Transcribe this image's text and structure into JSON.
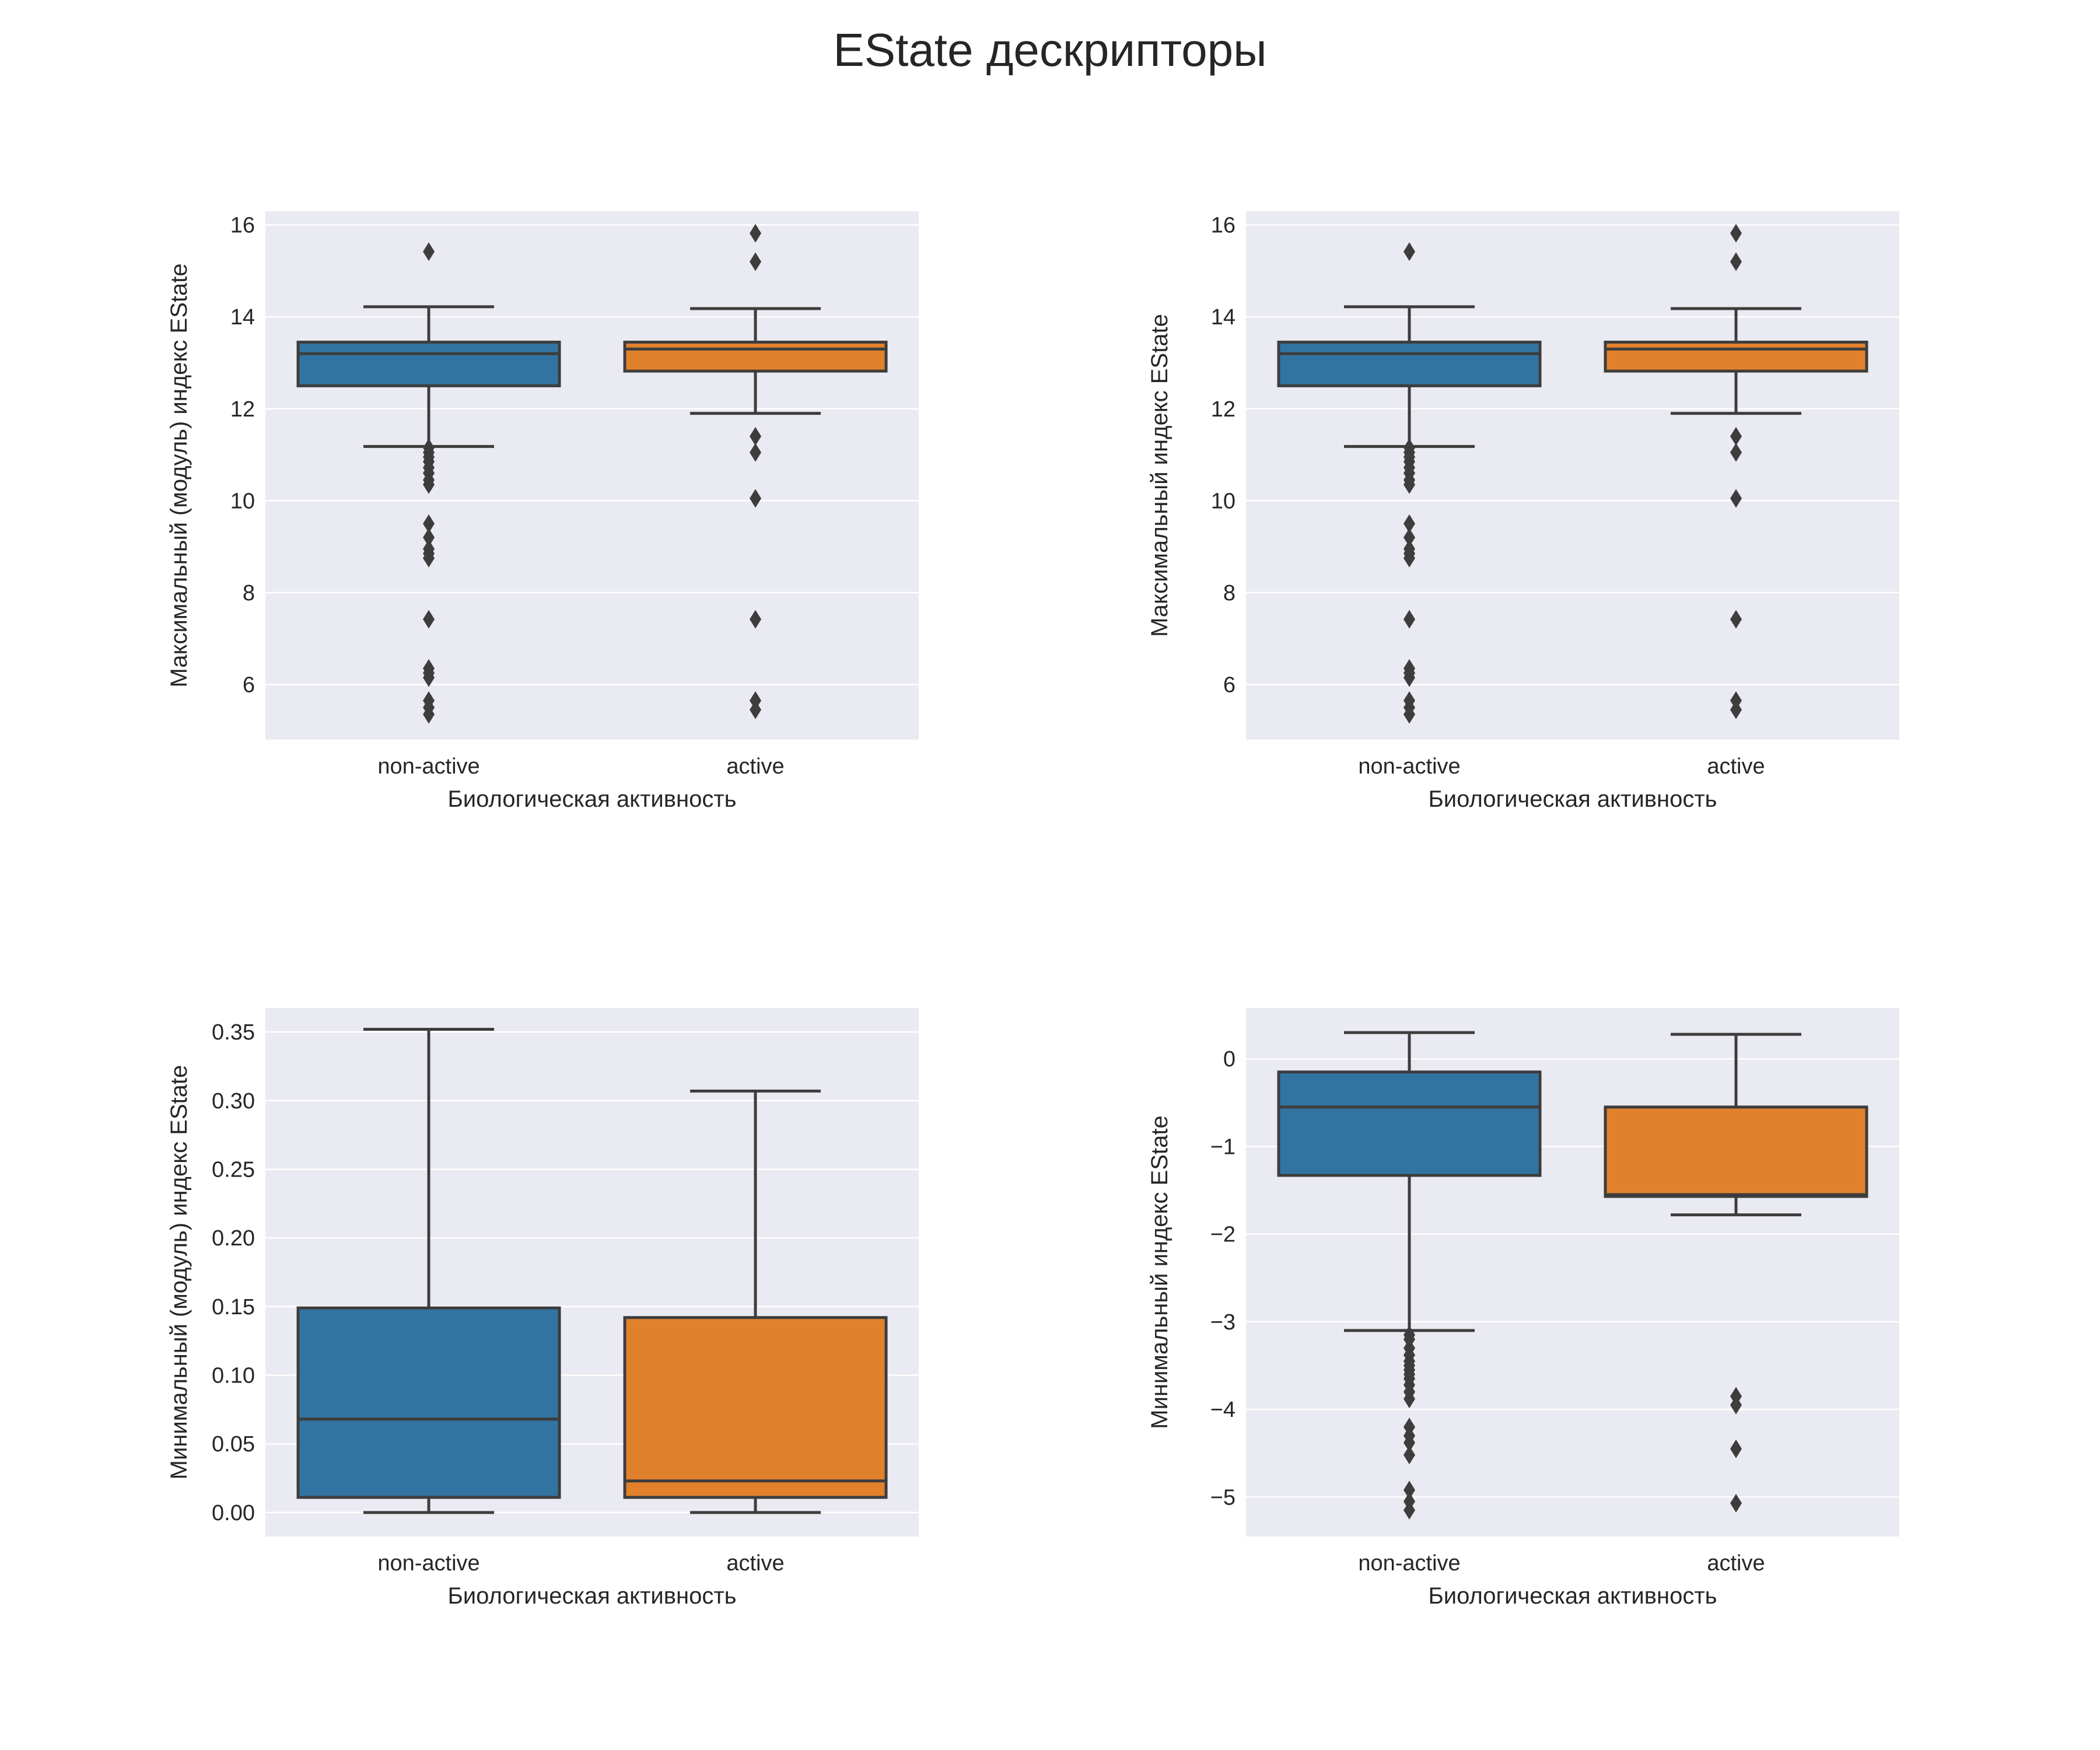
{
  "figure": {
    "title": "EState дескрипторы"
  },
  "chart_data": [
    {
      "type": "box",
      "xlabel": "Биологическая активность",
      "ylabel": "Максимальный (модуль) индекс EState",
      "ylim": [
        4.8,
        16.3
      ],
      "yticks": [
        6,
        8,
        10,
        12,
        14,
        16
      ],
      "ytick_labels": [
        "6",
        "8",
        "10",
        "12",
        "14",
        "16"
      ],
      "grid": true,
      "categories": [
        "non-active",
        "active"
      ],
      "colors": [
        "#3274a1",
        "#e1812c"
      ],
      "boxes": [
        {
          "category": "non-active",
          "q1": 12.5,
          "median": 13.2,
          "q3": 13.45,
          "whisker_low": 11.18,
          "whisker_high": 14.22,
          "outliers": [
            15.42,
            11.15,
            11.05,
            10.95,
            10.85,
            10.72,
            10.6,
            10.45,
            10.35,
            9.5,
            9.2,
            8.95,
            8.85,
            8.75,
            7.42,
            6.35,
            6.25,
            6.15,
            5.65,
            5.5,
            5.35
          ]
        },
        {
          "category": "active",
          "q1": 12.82,
          "median": 13.3,
          "q3": 13.45,
          "whisker_low": 11.9,
          "whisker_high": 14.18,
          "outliers": [
            15.82,
            15.2,
            11.4,
            11.05,
            10.05,
            7.42,
            5.65,
            5.45
          ]
        }
      ]
    },
    {
      "type": "box",
      "xlabel": "Биологическая активность",
      "ylabel": "Максимальный индекс EState",
      "ylim": [
        4.8,
        16.3
      ],
      "yticks": [
        6,
        8,
        10,
        12,
        14,
        16
      ],
      "ytick_labels": [
        "6",
        "8",
        "10",
        "12",
        "14",
        "16"
      ],
      "grid": true,
      "categories": [
        "non-active",
        "active"
      ],
      "colors": [
        "#3274a1",
        "#e1812c"
      ],
      "boxes": [
        {
          "category": "non-active",
          "q1": 12.5,
          "median": 13.2,
          "q3": 13.45,
          "whisker_low": 11.18,
          "whisker_high": 14.22,
          "outliers": [
            15.42,
            11.15,
            11.05,
            10.95,
            10.85,
            10.72,
            10.6,
            10.45,
            10.35,
            9.5,
            9.2,
            8.95,
            8.85,
            8.75,
            7.42,
            6.35,
            6.25,
            6.15,
            5.65,
            5.5,
            5.35
          ]
        },
        {
          "category": "active",
          "q1": 12.82,
          "median": 13.3,
          "q3": 13.45,
          "whisker_low": 11.9,
          "whisker_high": 14.18,
          "outliers": [
            15.82,
            15.2,
            11.4,
            11.05,
            10.05,
            7.42,
            5.65,
            5.45
          ]
        }
      ]
    },
    {
      "type": "box",
      "xlabel": "Биологическая активность",
      "ylabel": "Минимальный (модуль) индекс EState",
      "ylim": [
        -0.0175,
        0.3675
      ],
      "yticks": [
        0,
        0.05,
        0.1,
        0.15,
        0.2,
        0.25,
        0.3,
        0.35
      ],
      "ytick_labels": [
        "0.00",
        "0.05",
        "0.10",
        "0.15",
        "0.20",
        "0.25",
        "0.30",
        "0.35"
      ],
      "grid": true,
      "categories": [
        "non-active",
        "active"
      ],
      "colors": [
        "#3274a1",
        "#e1812c"
      ],
      "boxes": [
        {
          "category": "non-active",
          "q1": 0.011,
          "median": 0.068,
          "q3": 0.149,
          "whisker_low": 0.0,
          "whisker_high": 0.352,
          "outliers": []
        },
        {
          "category": "active",
          "q1": 0.011,
          "median": 0.023,
          "q3": 0.142,
          "whisker_low": 0.0,
          "whisker_high": 0.307,
          "outliers": []
        }
      ]
    },
    {
      "type": "box",
      "xlabel": "Биологическая активность",
      "ylabel": "Минимальный индекс EState",
      "ylim": [
        -5.45,
        0.58
      ],
      "yticks": [
        -5,
        -4,
        -3,
        -2,
        -1,
        0
      ],
      "ytick_labels": [
        "−5",
        "−4",
        "−3",
        "−2",
        "−1",
        "0"
      ],
      "grid": true,
      "categories": [
        "non-active",
        "active"
      ],
      "colors": [
        "#3274a1",
        "#e1812c"
      ],
      "boxes": [
        {
          "category": "non-active",
          "q1": -1.33,
          "median": -0.55,
          "q3": -0.15,
          "whisker_low": -3.1,
          "whisker_high": 0.3,
          "outliers": [
            -3.15,
            -3.2,
            -3.3,
            -3.38,
            -3.45,
            -3.5,
            -3.55,
            -3.6,
            -3.65,
            -3.72,
            -3.8,
            -3.88,
            -4.2,
            -4.3,
            -4.38,
            -4.52,
            -4.92,
            -5.05,
            -5.15
          ]
        },
        {
          "category": "active",
          "q1": -1.57,
          "median": -1.55,
          "q3": -0.55,
          "whisker_low": -1.78,
          "whisker_high": 0.28,
          "outliers": [
            -3.85,
            -3.95,
            -4.45,
            -5.07
          ]
        }
      ]
    }
  ]
}
